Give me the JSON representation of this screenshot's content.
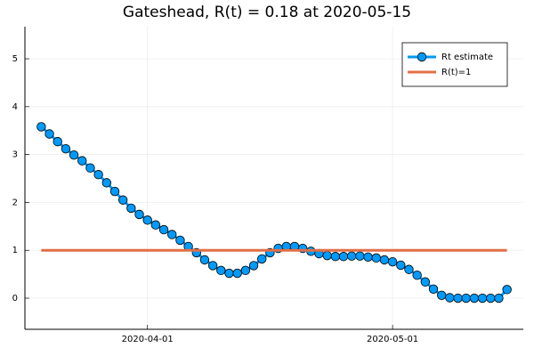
{
  "chart_data": {
    "type": "line",
    "title": "Gateshead, R(t) = 0.18 at 2020-05-15",
    "x": [
      "2020-03-19",
      "2020-03-20",
      "2020-03-21",
      "2020-03-22",
      "2020-03-23",
      "2020-03-24",
      "2020-03-25",
      "2020-03-26",
      "2020-03-27",
      "2020-03-28",
      "2020-03-29",
      "2020-03-30",
      "2020-03-31",
      "2020-04-01",
      "2020-04-02",
      "2020-04-03",
      "2020-04-04",
      "2020-04-05",
      "2020-04-06",
      "2020-04-07",
      "2020-04-08",
      "2020-04-09",
      "2020-04-10",
      "2020-04-11",
      "2020-04-12",
      "2020-04-13",
      "2020-04-14",
      "2020-04-15",
      "2020-04-16",
      "2020-04-17",
      "2020-04-18",
      "2020-04-19",
      "2020-04-20",
      "2020-04-21",
      "2020-04-22",
      "2020-04-23",
      "2020-04-24",
      "2020-04-25",
      "2020-04-26",
      "2020-04-27",
      "2020-04-28",
      "2020-04-29",
      "2020-04-30",
      "2020-05-01",
      "2020-05-02",
      "2020-05-03",
      "2020-05-04",
      "2020-05-05",
      "2020-05-06",
      "2020-05-07",
      "2020-05-08",
      "2020-05-09",
      "2020-05-10",
      "2020-05-11",
      "2020-05-12",
      "2020-05-13",
      "2020-05-14",
      "2020-05-15"
    ],
    "series": [
      {
        "name": "Rt estimate",
        "color": "#009af9",
        "markers": true,
        "values": [
          3.58,
          3.43,
          3.27,
          3.12,
          2.99,
          2.87,
          2.72,
          2.58,
          2.41,
          2.23,
          2.05,
          1.88,
          1.75,
          1.63,
          1.53,
          1.43,
          1.33,
          1.21,
          1.08,
          0.95,
          0.8,
          0.68,
          0.58,
          0.52,
          0.52,
          0.58,
          0.68,
          0.82,
          0.95,
          1.04,
          1.08,
          1.08,
          1.04,
          0.98,
          0.93,
          0.89,
          0.87,
          0.87,
          0.88,
          0.88,
          0.86,
          0.84,
          0.8,
          0.76,
          0.69,
          0.6,
          0.48,
          0.34,
          0.19,
          0.06,
          0.01,
          0,
          0,
          0,
          0,
          0,
          0,
          0.18
        ]
      },
      {
        "name": "R(t)=1",
        "color": "#e26f46",
        "markers": false,
        "values": [
          1,
          1,
          1,
          1,
          1,
          1,
          1,
          1,
          1,
          1,
          1,
          1,
          1,
          1,
          1,
          1,
          1,
          1,
          1,
          1,
          1,
          1,
          1,
          1,
          1,
          1,
          1,
          1,
          1,
          1,
          1,
          1,
          1,
          1,
          1,
          1,
          1,
          1,
          1,
          1,
          1,
          1,
          1,
          1,
          1,
          1,
          1,
          1,
          1,
          1,
          1,
          1,
          1,
          1,
          1,
          1,
          1,
          1
        ]
      }
    ],
    "xlim": [
      "2020-03-17",
      "2020-05-17"
    ],
    "xticks": [
      "2020-04-01",
      "2020-05-01"
    ],
    "ylim": [
      -0.65,
      5.67
    ],
    "yticks": [
      0,
      1,
      2,
      3,
      4,
      5
    ],
    "grid": true,
    "legend": "top-right"
  }
}
